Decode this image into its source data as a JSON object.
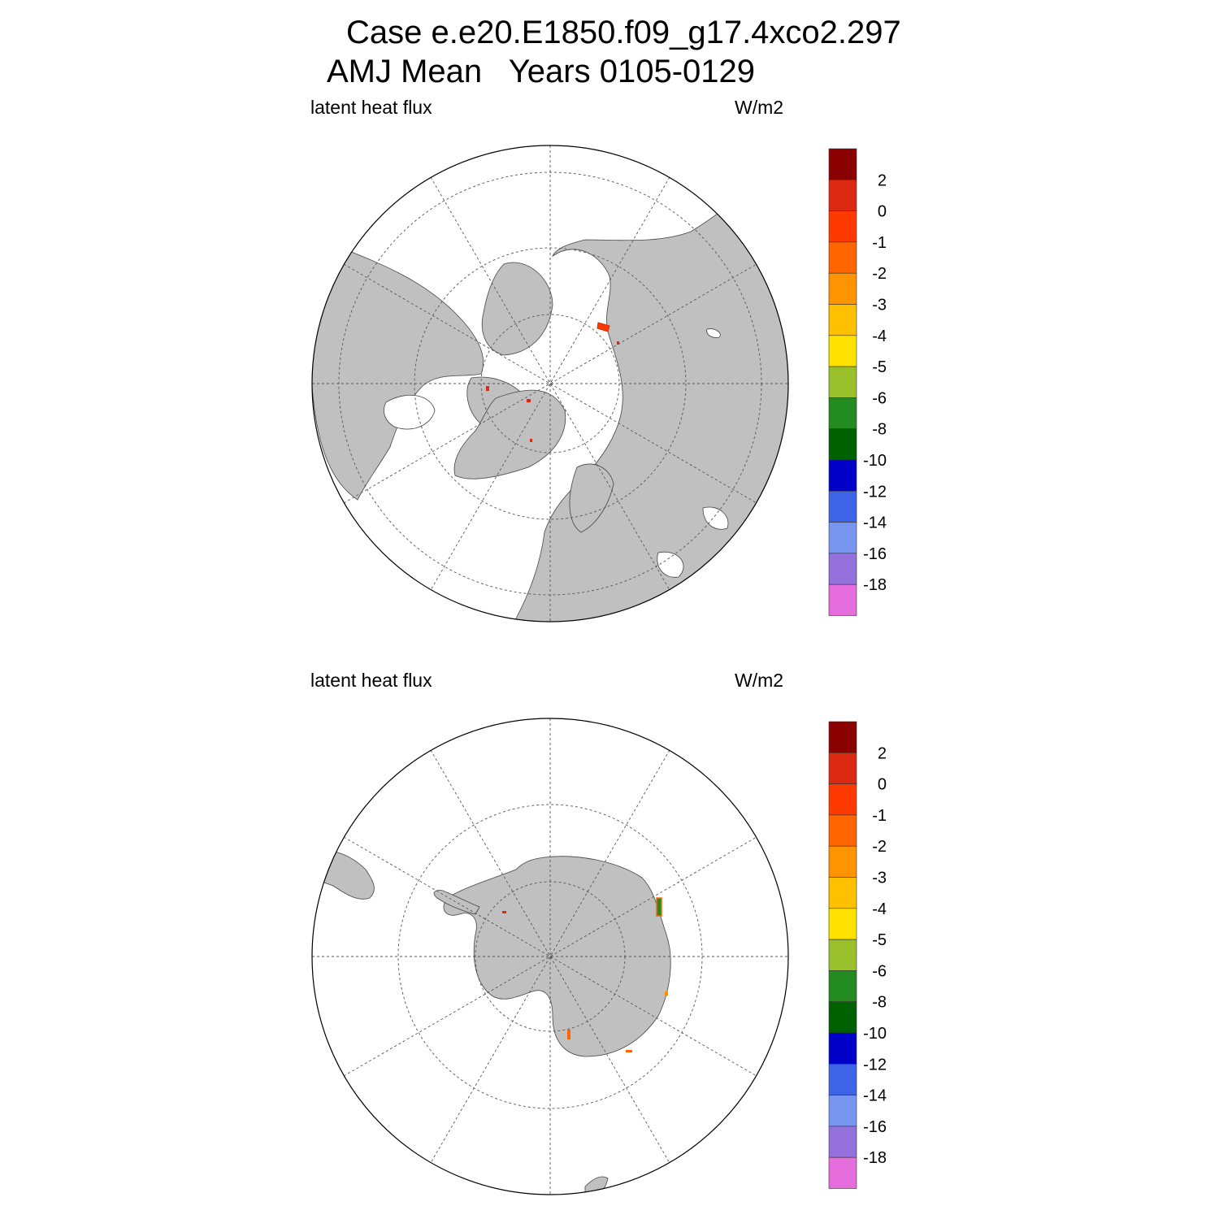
{
  "title_line1": "Case e.e20.E1850.f09_g17.4xco2.297",
  "title_line2": "AMJ Mean   Years 0105-0129",
  "panels": [
    {
      "id": "north",
      "variable_label": "latent heat flux",
      "units_label": "W/m2"
    },
    {
      "id": "south",
      "variable_label": "latent heat flux",
      "units_label": "W/m2"
    }
  ],
  "colorbar": {
    "labels": [
      "2",
      "0",
      "-1",
      "-2",
      "-3",
      "-4",
      "-5",
      "-6",
      "-8",
      "-10",
      "-12",
      "-14",
      "-16",
      "-18"
    ],
    "colors": [
      "#8b0000",
      "#dc2911",
      "#ff3a00",
      "#ff6600",
      "#ff9400",
      "#ffc000",
      "#ffe100",
      "#9ac02c",
      "#248b21",
      "#006100",
      "#0000c8",
      "#3c64e6",
      "#7896f0",
      "#9370db",
      "#e66edc"
    ]
  },
  "colors": {
    "land": "#c0c0c0",
    "ocean": "#ffffff",
    "coast": "#444444",
    "grid": "#555555"
  }
}
